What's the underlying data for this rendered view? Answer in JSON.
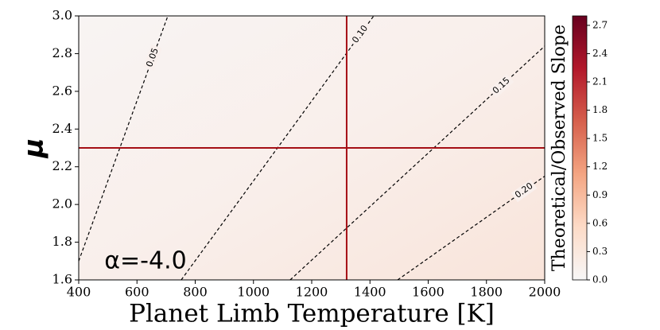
{
  "chart_data": {
    "type": "contour",
    "xlabel": "Planet Limb Temperature [K]",
    "ylabel": "μ",
    "xlim": [
      400,
      2000
    ],
    "ylim": [
      1.6,
      3.0
    ],
    "xticks": [
      400,
      600,
      800,
      1000,
      1200,
      1400,
      1600,
      1800,
      2000
    ],
    "yticks": [
      1.6,
      1.8,
      {
        "value": 2.0,
        "label": "2.0"
      },
      2.2,
      2.4,
      2.6,
      2.8,
      {
        "value": 3.0,
        "label": "3.0"
      }
    ],
    "annotation": "α=-4.0",
    "contour_color": "#000000",
    "contours": [
      {
        "level": 0.05,
        "label": "0.05",
        "x": [
          400,
          706
        ],
        "y": [
          1.7,
          3.0
        ]
      },
      {
        "level": 0.1,
        "label": "0.10",
        "x": [
          752,
          1413
        ],
        "y": [
          1.6,
          3.0
        ]
      },
      {
        "level": 0.15,
        "label": "0.15",
        "x": [
          1126,
          2000
        ],
        "y": [
          1.6,
          2.84
        ]
      },
      {
        "level": 0.2,
        "label": "0.20",
        "x": [
          1495,
          2000
        ],
        "y": [
          1.6,
          2.15
        ]
      }
    ],
    "vline": 1320,
    "hline": 2.3,
    "marker_line_color": "#a50f15",
    "colorbar": {
      "label": "Theoretical/Observed Slope",
      "lim": [
        0,
        2.8
      ],
      "ticks": [
        {
          "value": 0.0,
          "label": "0.0"
        },
        0.3,
        0.6,
        0.9,
        1.2,
        1.5,
        1.8,
        2.1,
        2.4,
        2.7
      ],
      "colors": [
        "#f7f7f7",
        "#fddbc7",
        "#f4a582",
        "#d6604d",
        "#b2182b",
        "#67001f"
      ]
    }
  }
}
